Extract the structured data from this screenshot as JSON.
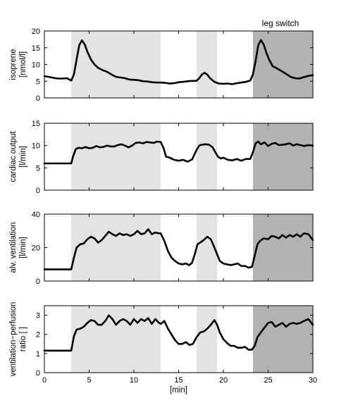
{
  "annotation": "leg switch",
  "colors": {
    "shade_light": "#e3e3e3",
    "shade_dark": "#b3b3b3",
    "line": "#000000",
    "background": "#ffffff"
  },
  "chart_data": [
    {
      "type": "line",
      "ylabel": [
        "isoprene",
        "[nmol/l]"
      ],
      "xlim": [
        0,
        30
      ],
      "ylim": [
        0,
        20
      ],
      "yticks": [
        0,
        5,
        10,
        15,
        20
      ],
      "xticks": [
        0,
        5,
        10,
        15,
        20,
        25,
        30
      ],
      "show_xtick_labels": false,
      "shaded_regions": [
        {
          "start": 3,
          "end": 13,
          "shade": "light"
        },
        {
          "start": 17,
          "end": 19.3,
          "shade": "light"
        },
        {
          "start": 23.3,
          "end": 30,
          "shade": "dark"
        }
      ],
      "series": [
        {
          "x": [
            0,
            0.5,
            1,
            1.5,
            2,
            2.5,
            3,
            3.3,
            3.6,
            3.9,
            4.2,
            4.5,
            4.8,
            5.2,
            5.6,
            6,
            6.5,
            7,
            7.5,
            8,
            8.5,
            9,
            9.5,
            10,
            10.5,
            11,
            11.5,
            12,
            12.5,
            13,
            13.5,
            14,
            14.5,
            15,
            15.5,
            16,
            16.5,
            17,
            17.3,
            17.6,
            17.9,
            18.2,
            18.5,
            19,
            19.5,
            20,
            20.5,
            21,
            21.5,
            22,
            22.5,
            23,
            23.3,
            23.6,
            23.9,
            24.2,
            24.5,
            24.8,
            25.1,
            25.5,
            26,
            26.5,
            27,
            27.5,
            28,
            28.5,
            29,
            29.5,
            30
          ],
          "y": [
            6.5,
            6.3,
            6,
            5.8,
            5.8,
            5.9,
            5.2,
            7,
            11.5,
            15.8,
            17.2,
            16,
            13.8,
            11.5,
            10,
            9,
            8.3,
            7.8,
            7,
            6.3,
            6.1,
            5.9,
            5.5,
            5.4,
            5.3,
            5,
            4.9,
            4.7,
            4.6,
            4.6,
            4.5,
            4.3,
            4.4,
            4.7,
            4.8,
            5,
            5.1,
            5.1,
            5.9,
            7,
            7.5,
            7,
            5.9,
            4.8,
            4.3,
            4.2,
            4.3,
            4.1,
            4.4,
            4.6,
            4.8,
            5.2,
            7,
            11,
            15.8,
            17.3,
            16,
            13.5,
            11.5,
            9.5,
            8.8,
            8,
            7.2,
            6.3,
            5.9,
            5.8,
            6.2,
            6.6,
            6.8
          ]
        }
      ]
    },
    {
      "type": "line",
      "ylabel": [
        "cardiac output",
        "[l/min]"
      ],
      "xlim": [
        0,
        30
      ],
      "ylim": [
        0,
        15
      ],
      "yticks": [
        0,
        5,
        10,
        15
      ],
      "xticks": [
        0,
        5,
        10,
        15,
        20,
        25,
        30
      ],
      "show_xtick_labels": false,
      "shaded_regions": [
        {
          "start": 3,
          "end": 13,
          "shade": "light"
        },
        {
          "start": 17,
          "end": 19.3,
          "shade": "light"
        },
        {
          "start": 23.3,
          "end": 30,
          "shade": "dark"
        }
      ],
      "series": [
        {
          "x": [
            0,
            0.5,
            1,
            1.5,
            2,
            2.5,
            3,
            3.2,
            3.5,
            3.8,
            4.2,
            4.6,
            5,
            5.4,
            5.8,
            6.2,
            6.6,
            7,
            7.4,
            7.8,
            8.2,
            8.6,
            9,
            9.4,
            9.8,
            10.2,
            10.6,
            11,
            11.4,
            11.8,
            12.2,
            12.6,
            13,
            13.3,
            13.6,
            14,
            14.5,
            15,
            15.5,
            16,
            16.5,
            17,
            17.3,
            17.6,
            18,
            18.4,
            18.8,
            19.1,
            19.4,
            19.7,
            20,
            20.5,
            21,
            21.5,
            22,
            22.5,
            23,
            23.3,
            23.6,
            23.9,
            24.2,
            24.6,
            25,
            25.4,
            25.8,
            26.2,
            26.6,
            27,
            27.4,
            27.8,
            28.2,
            28.6,
            29,
            29.5,
            30
          ],
          "y": [
            6,
            6,
            6,
            6,
            6,
            6,
            6,
            7.5,
            9.2,
            9.5,
            9.4,
            9.7,
            9.4,
            9.5,
            9.9,
            9.6,
            9.7,
            10,
            9.8,
            9.8,
            10.1,
            10.3,
            10,
            9.6,
            10,
            10.6,
            10.7,
            10.5,
            10.8,
            10.7,
            10.6,
            10.9,
            10.8,
            9.5,
            7.5,
            7.3,
            6.8,
            6.6,
            6.8,
            6.4,
            6.9,
            9,
            10,
            10.2,
            10.3,
            10.2,
            9.6,
            8.5,
            7.5,
            7.1,
            7.3,
            6.8,
            6.7,
            7,
            6.6,
            7,
            7,
            8.5,
            10.5,
            10.9,
            10.3,
            10.7,
            9.9,
            10.4,
            10.6,
            10.1,
            10.2,
            10.3,
            10.5,
            10,
            10.3,
            10.1,
            9.9,
            10.1,
            10
          ]
        }
      ]
    },
    {
      "type": "line",
      "ylabel": [
        "alv. ventilation",
        "[l/min]"
      ],
      "xlim": [
        0,
        30
      ],
      "ylim": [
        0,
        40
      ],
      "yticks": [
        0,
        20,
        40
      ],
      "xticks": [
        0,
        5,
        10,
        15,
        20,
        25,
        30
      ],
      "show_xtick_labels": false,
      "shaded_regions": [
        {
          "start": 3,
          "end": 13,
          "shade": "light"
        },
        {
          "start": 17,
          "end": 19.3,
          "shade": "light"
        },
        {
          "start": 23.3,
          "end": 30,
          "shade": "dark"
        }
      ],
      "series": [
        {
          "x": [
            0,
            0.5,
            1,
            1.5,
            2,
            2.5,
            3,
            3.3,
            3.6,
            4,
            4.4,
            4.8,
            5.2,
            5.6,
            6,
            6.4,
            6.8,
            7.2,
            7.6,
            8,
            8.4,
            8.8,
            9.2,
            9.6,
            10,
            10.4,
            10.8,
            11.2,
            11.6,
            12,
            12.4,
            12.8,
            13,
            13.4,
            13.8,
            14.2,
            14.6,
            15,
            15.4,
            15.8,
            16.2,
            16.5,
            16.8,
            17.1,
            17.4,
            17.8,
            18.2,
            18.6,
            19,
            19.3,
            19.6,
            20,
            20.4,
            20.8,
            21.2,
            21.6,
            22,
            22.4,
            22.8,
            23.2,
            23.5,
            23.8,
            24.1,
            24.5,
            25,
            25.4,
            25.8,
            26.2,
            26.6,
            27,
            27.4,
            27.8,
            28.2,
            28.6,
            29,
            29.5,
            30
          ],
          "y": [
            7,
            7,
            7,
            7,
            7,
            7,
            7,
            14,
            20,
            22,
            22.5,
            25,
            26.5,
            25.5,
            23,
            24.5,
            27,
            29.5,
            28,
            27,
            28.5,
            27.5,
            28,
            27,
            28,
            30,
            28,
            28.5,
            31,
            28,
            29,
            28.5,
            28.5,
            24,
            18,
            14,
            12,
            10.5,
            10,
            10.5,
            9.5,
            11,
            16,
            22,
            23,
            24.5,
            26.5,
            25,
            20,
            16,
            12,
            10.5,
            10,
            9.5,
            10,
            10.5,
            9,
            9,
            8,
            8.5,
            15,
            22,
            24,
            25.5,
            25,
            27,
            26.5,
            25.5,
            27.5,
            26,
            27.5,
            26.5,
            28,
            26.5,
            28.5,
            28,
            24.5
          ]
        }
      ]
    },
    {
      "type": "line",
      "ylabel": [
        "ventilation−perfusion",
        "ratio [ ]"
      ],
      "xlabel": "[min]",
      "xlim": [
        0,
        30
      ],
      "ylim": [
        0,
        3.5
      ],
      "yticks": [
        0,
        1,
        2,
        3
      ],
      "xticks": [
        0,
        5,
        10,
        15,
        20,
        25,
        30
      ],
      "show_xtick_labels": true,
      "shaded_regions": [
        {
          "start": 3,
          "end": 13,
          "shade": "light"
        },
        {
          "start": 17,
          "end": 19.3,
          "shade": "light"
        },
        {
          "start": 23.3,
          "end": 30,
          "shade": "dark"
        }
      ],
      "series": [
        {
          "x": [
            0,
            0.5,
            1,
            1.5,
            2,
            2.5,
            3,
            3.3,
            3.6,
            4,
            4.4,
            4.8,
            5.2,
            5.6,
            6,
            6.4,
            6.8,
            7.2,
            7.6,
            8,
            8.4,
            8.8,
            9.2,
            9.6,
            10,
            10.4,
            10.8,
            11.2,
            11.6,
            12,
            12.4,
            12.8,
            13,
            13.4,
            13.8,
            14.2,
            14.6,
            15,
            15.4,
            15.8,
            16.2,
            16.6,
            17,
            17.4,
            17.8,
            18.2,
            18.6,
            19,
            19.3,
            19.6,
            20,
            20.4,
            20.8,
            21.2,
            21.6,
            22,
            22.4,
            22.8,
            23.2,
            23.5,
            23.8,
            24.1,
            24.5,
            25,
            25.4,
            25.8,
            26.2,
            26.6,
            27,
            27.4,
            27.8,
            28.2,
            28.6,
            29,
            29.5,
            30
          ],
          "y": [
            1.15,
            1.15,
            1.15,
            1.15,
            1.15,
            1.15,
            1.15,
            1.9,
            2.25,
            2.3,
            2.4,
            2.6,
            2.75,
            2.7,
            2.5,
            2.5,
            2.7,
            3,
            2.8,
            2.5,
            2.7,
            2.8,
            2.7,
            2.5,
            2.8,
            2.6,
            2.8,
            2.7,
            2.85,
            2.55,
            2.8,
            2.6,
            2.55,
            2.7,
            2.3,
            2.0,
            1.7,
            1.5,
            1.5,
            1.6,
            1.45,
            1.5,
            1.85,
            2.1,
            2.15,
            2.3,
            2.5,
            2.75,
            2.5,
            2.1,
            1.75,
            1.55,
            1.4,
            1.4,
            1.3,
            1.3,
            1.35,
            1.2,
            1.2,
            1.4,
            1.85,
            2.05,
            2.3,
            2.6,
            2.65,
            2.4,
            2.5,
            2.6,
            2.4,
            2.55,
            2.6,
            2.55,
            2.6,
            2.7,
            2.8,
            2.5
          ]
        }
      ]
    }
  ]
}
